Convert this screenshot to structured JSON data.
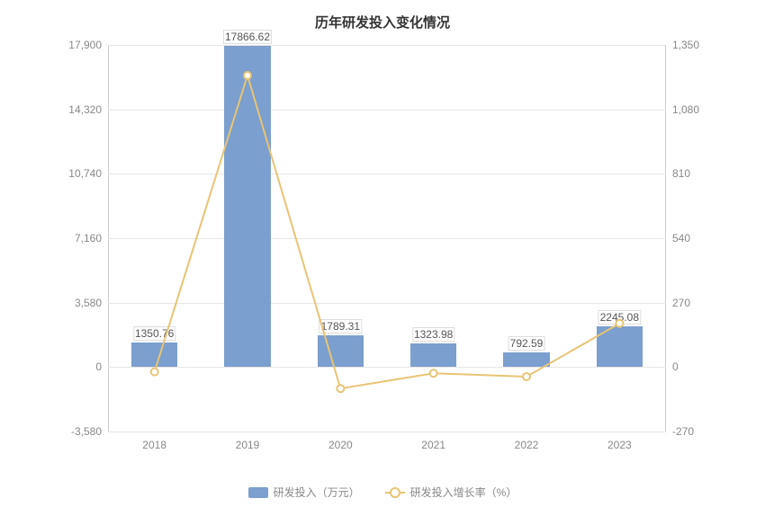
{
  "title": {
    "text": "历年研发投入变化情况",
    "fontsize": 15,
    "color": "#333333"
  },
  "chart": {
    "background_color": "#ffffff",
    "grid_color": "#e6e6e6",
    "axis_color": "#cccccc",
    "categories": [
      "2018",
      "2019",
      "2020",
      "2021",
      "2022",
      "2023"
    ],
    "bar_series": {
      "name": "研发投入（万元）",
      "color": "#7b9fce",
      "values": [
        1350.76,
        17866.62,
        1789.31,
        1323.98,
        792.59,
        2245.08
      ],
      "bar_width_ratio": 0.5,
      "label_fontsize": 12,
      "label_color": "#555555"
    },
    "line_series": {
      "name": "研发投入增长率（%）",
      "color": "#e8c474",
      "marker_fill": "#ffffff",
      "marker_size": 8,
      "line_width": 2,
      "values": [
        -20,
        1222,
        -90,
        -26,
        -40,
        183
      ]
    },
    "y_left": {
      "min": -3580,
      "max": 17900,
      "ticks": [
        -3580,
        0,
        3580,
        7160,
        10740,
        14320,
        17900
      ],
      "tick_labels": [
        "-3,580",
        "0",
        "3,580",
        "7,160",
        "10,740",
        "14,320",
        "17,900"
      ],
      "label_fontsize": 12,
      "label_color": "#888888"
    },
    "y_right": {
      "min": -270,
      "max": 1350,
      "ticks": [
        -270,
        0,
        270,
        540,
        810,
        1080,
        1350
      ],
      "tick_labels": [
        "-270",
        "0",
        "270",
        "540",
        "810",
        "1,080",
        "1,350"
      ],
      "label_fontsize": 12,
      "label_color": "#888888"
    },
    "x_axis": {
      "label_fontsize": 12,
      "label_color": "#888888"
    }
  },
  "legend": {
    "fontsize": 12,
    "color": "#888888"
  }
}
